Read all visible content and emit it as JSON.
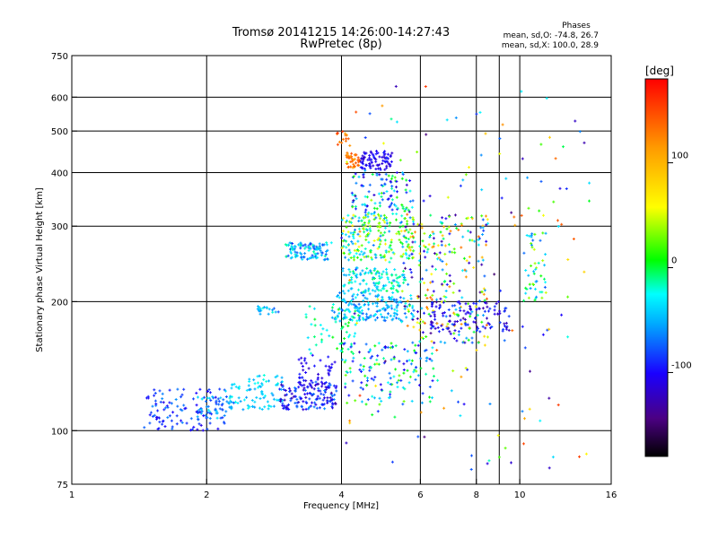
{
  "chart_data": {
    "type": "scatter",
    "title": "Tromsø 20141215 14:26:00-14:27:43",
    "subtitle": "RwPretec (8p)",
    "xlabel": "Frequency [MHz]",
    "ylabel": "Stationary phase Virtual Height [km]",
    "x_scale": "log",
    "y_scale": "log",
    "xlim": [
      1,
      16
    ],
    "ylim": [
      75,
      750
    ],
    "x_ticks": [
      1,
      2,
      4,
      6,
      8,
      10,
      16
    ],
    "x_tick_labels": [
      "1",
      "2",
      "4",
      "6",
      "8",
      "10",
      "16"
    ],
    "y_ticks": [
      75,
      100,
      200,
      300,
      400,
      500,
      600,
      750
    ],
    "y_tick_labels": [
      "75",
      "100",
      "200",
      "300",
      "400",
      "500",
      "600",
      "750"
    ],
    "x_grid": [
      2,
      4,
      6,
      8,
      9,
      10
    ],
    "y_grid": [
      100,
      200,
      300,
      400,
      500,
      600
    ],
    "stats": {
      "heading": "Phases",
      "line_o": "mean, sd,O: -74.8, 26.7",
      "line_x": "mean, sd,X: 100.0, 28.9"
    },
    "colorbar": {
      "label": "[deg]",
      "range": [
        -180,
        180
      ],
      "ticks": [
        100,
        0,
        -100
      ],
      "tick_labels": [
        "100",
        "0",
        "-100"
      ]
    },
    "clusters": [
      {
        "x": [
          1.45,
          2.2
        ],
        "y": [
          100,
          125
        ],
        "phase": [
          -110,
          -60
        ],
        "n": 110
      },
      {
        "x": [
          1.9,
          2.3
        ],
        "y": [
          105,
          120
        ],
        "phase": [
          -80,
          -30
        ],
        "n": 40
      },
      {
        "x": [
          2.2,
          3.0
        ],
        "y": [
          112,
          135
        ],
        "phase": [
          -60,
          -20
        ],
        "n": 90
      },
      {
        "x": [
          2.9,
          3.9
        ],
        "y": [
          112,
          130
        ],
        "phase": [
          -130,
          -60
        ],
        "n": 140
      },
      {
        "x": [
          3.2,
          3.9
        ],
        "y": [
          125,
          150
        ],
        "phase": [
          -120,
          -90
        ],
        "n": 50
      },
      {
        "x": [
          3.0,
          3.8
        ],
        "y": [
          250,
          275
        ],
        "phase": [
          -90,
          -10
        ],
        "n": 110
      },
      {
        "x": [
          2.6,
          2.9
        ],
        "y": [
          185,
          195
        ],
        "phase": [
          -80,
          -20
        ],
        "n": 20
      },
      {
        "x": [
          3.3,
          4.3
        ],
        "y": [
          150,
          195
        ],
        "phase": [
          -40,
          10
        ],
        "n": 60
      },
      {
        "x": [
          3.8,
          5.8
        ],
        "y": [
          180,
          210
        ],
        "phase": [
          -80,
          -20
        ],
        "n": 170
      },
      {
        "x": [
          4.0,
          5.6
        ],
        "y": [
          210,
          240
        ],
        "phase": [
          -60,
          0
        ],
        "n": 120
      },
      {
        "x": [
          4.0,
          5.8
        ],
        "y": [
          250,
          320
        ],
        "phase": [
          -70,
          70
        ],
        "n": 220
      },
      {
        "x": [
          4.2,
          5.8
        ],
        "y": [
          320,
          400
        ],
        "phase": [
          -120,
          20
        ],
        "n": 110
      },
      {
        "x": [
          4.4,
          5.2
        ],
        "y": [
          405,
          450
        ],
        "phase": [
          -120,
          -90
        ],
        "n": 80
      },
      {
        "x": [
          4.1,
          4.4
        ],
        "y": [
          410,
          445
        ],
        "phase": [
          110,
          150
        ],
        "n": 40
      },
      {
        "x": [
          3.9,
          4.2
        ],
        "y": [
          460,
          500
        ],
        "phase": [
          110,
          160
        ],
        "n": 15
      },
      {
        "x": [
          4.0,
          6.5
        ],
        "y": [
          115,
          160
        ],
        "phase": [
          -110,
          30
        ],
        "n": 140
      },
      {
        "x": [
          5.5,
          8.5
        ],
        "y": [
          160,
          320
        ],
        "phase": [
          -140,
          140
        ],
        "n": 250
      },
      {
        "x": [
          6.3,
          9.5
        ],
        "y": [
          170,
          200
        ],
        "phase": [
          -130,
          -80
        ],
        "n": 110
      },
      {
        "x": [
          10.2,
          11.5
        ],
        "y": [
          200,
          290
        ],
        "phase": [
          -80,
          50
        ],
        "n": 50
      },
      {
        "x": [
          4.0,
          14.5
        ],
        "y": [
          80,
          650
        ],
        "phase": [
          -150,
          160
        ],
        "n": 170
      }
    ]
  }
}
